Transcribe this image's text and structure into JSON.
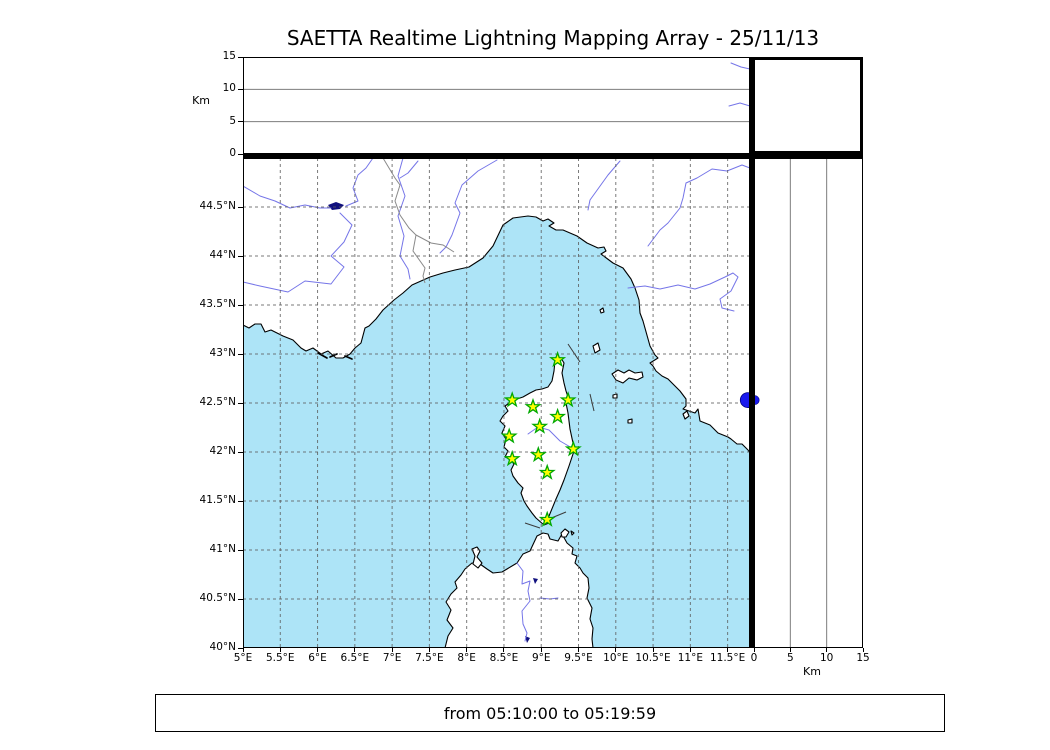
{
  "header": {
    "title": "SAETTA Realtime Lightning Mapping Array - 25/11/13"
  },
  "footer": {
    "time_range": "from 05:10:00 to 05:19:59"
  },
  "chart_data": {
    "type": "scatter",
    "title": "SAETTA Realtime Lightning Mapping Array - 25/11/13",
    "time_window": {
      "from": "05:10:00",
      "to": "05:19:59"
    },
    "panels": {
      "alt_vs_lon": {
        "position": "top",
        "ylabel": "Km",
        "ylim": [
          0,
          15
        ],
        "ytick_values": [
          0,
          5,
          10,
          15
        ],
        "ytick_labels": [
          "0",
          "5",
          "10",
          "15"
        ],
        "gridlines_km": [
          5,
          10
        ],
        "data_points": []
      },
      "map": {
        "position": "center",
        "xlim_deg_e": [
          5,
          11.8
        ],
        "ylim_deg_n": [
          40,
          45
        ],
        "xtick_values": [
          5,
          5.5,
          6,
          6.5,
          7,
          7.5,
          8,
          8.5,
          9,
          9.5,
          10,
          10.5,
          11,
          11.5
        ],
        "xtick_labels": [
          "5°E",
          "5.5°E",
          "6°E",
          "6.5°E",
          "7°E",
          "7.5°E",
          "8°E",
          "8.5°E",
          "9°E",
          "9.5°E",
          "10°E",
          "10.5°E",
          "11°E",
          "11.5°E"
        ],
        "ytick_values": [
          40,
          40.5,
          41,
          41.5,
          42,
          42.5,
          43,
          43.5,
          44,
          44.5
        ],
        "ytick_labels": [
          "40°N",
          "40.5°N",
          "41°N",
          "41.5°N",
          "42°N",
          "42.5°N",
          "43°N",
          "43.5°N",
          "44°N",
          "44.5°N"
        ],
        "lon_gridlines": [
          5.5,
          6,
          6.5,
          7,
          7.5,
          8,
          8.5,
          9,
          9.5,
          10,
          10.5,
          11,
          11.5
        ],
        "lat_gridlines": [
          40.5,
          41,
          41.5,
          42,
          42.5,
          43,
          43.5,
          44,
          44.5
        ],
        "grid_style": "dashed"
      },
      "alt_vs_lat": {
        "position": "right",
        "xlabel": "Km",
        "xlim": [
          0,
          15
        ],
        "xtick_values": [
          0,
          5,
          10,
          15
        ],
        "xtick_labels": [
          "0",
          "5",
          "10",
          "15"
        ],
        "gridlines_km": [
          5,
          10
        ],
        "data_points": []
      }
    },
    "stations": {
      "marker": "star",
      "fill": "#ffff00",
      "edge": "#00a800",
      "lon_lat": [
        [
          9.22,
          42.94
        ],
        [
          8.61,
          42.53
        ],
        [
          8.89,
          42.46
        ],
        [
          9.36,
          42.53
        ],
        [
          9.22,
          42.36
        ],
        [
          8.98,
          42.26
        ],
        [
          8.57,
          42.16
        ],
        [
          9.43,
          42.03
        ],
        [
          8.61,
          41.93
        ],
        [
          8.96,
          41.97
        ],
        [
          9.08,
          41.79
        ],
        [
          9.08,
          41.31
        ]
      ]
    },
    "events": [
      {
        "lon": 11.77,
        "lat": 42.53,
        "alt_km": 0.1,
        "color": "#1a1aee"
      }
    ],
    "colors": {
      "sea": "#ade4f7",
      "land": "#ffffff",
      "coastline": "#000000",
      "river": "#7575e8",
      "country_border": "#8a8a8a",
      "grid": "#5a5a5a",
      "lake": "#10107e"
    }
  }
}
